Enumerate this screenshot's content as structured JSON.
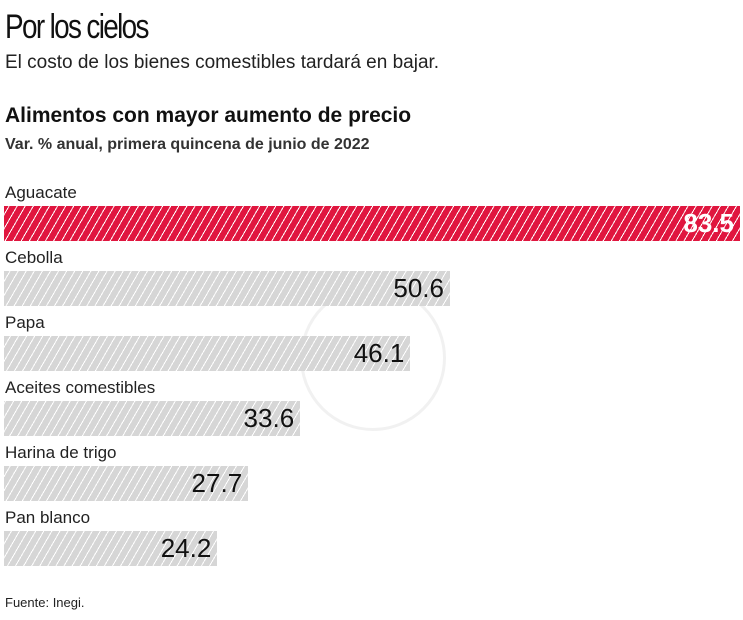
{
  "header": {
    "title": "Por los cielos",
    "subtitle": "El costo de los bienes comestibles tardará en bajar."
  },
  "chart_data": {
    "type": "bar",
    "orientation": "horizontal",
    "title": "Alimentos con mayor aumento de precio",
    "subtitle": "Var. % anual, primera quincena de junio de 2022",
    "categories": [
      "Aguacate",
      "Cebolla",
      "Papa",
      "Aceites comestibles",
      "Harina de trigo",
      "Pan blanco"
    ],
    "values": [
      83.5,
      50.6,
      46.1,
      33.6,
      27.7,
      24.2
    ],
    "value_labels": [
      "83.5",
      "50.6",
      "46.1",
      "33.6",
      "27.7",
      "24.2"
    ],
    "highlight_color": "#e0163f",
    "default_color": "#d6d6d6",
    "xlim": [
      0,
      83.5
    ],
    "grid": false
  },
  "source": "Fuente: Inegi."
}
